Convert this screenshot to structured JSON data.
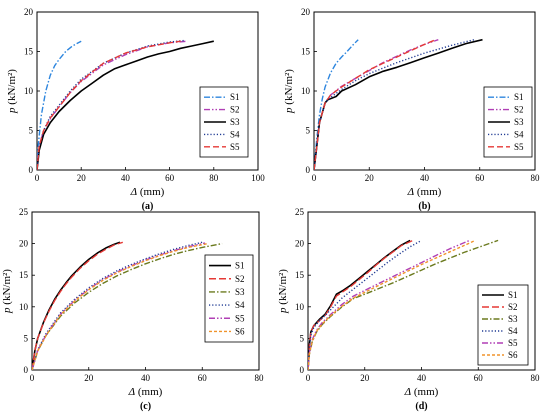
{
  "chart_data": [
    {
      "type": "line",
      "panel_label": "(a)",
      "xlabel_sym": "Δ",
      "xlabel_unit": " (mm)",
      "ylabel_sym": "p",
      "ylabel_unit": " (kN/m²)",
      "xlim": [
        0,
        100
      ],
      "ylim": [
        0,
        20
      ],
      "xticks": [
        0,
        20,
        40,
        60,
        80,
        100
      ],
      "yticks": [
        0,
        5,
        10,
        15,
        20
      ],
      "grid": false,
      "legend": "bottom-right",
      "series": [
        {
          "name": "S1",
          "color": "#2e86de",
          "dash": "6,2,1.5,2",
          "x": [
            0,
            0.5,
            2,
            4,
            6,
            8,
            10,
            13,
            16,
            20
          ],
          "y": [
            0,
            3,
            7,
            10,
            12,
            13.2,
            14,
            15,
            15.7,
            16.3
          ]
        },
        {
          "name": "S2",
          "color": "#b03fb5",
          "dash": "6,2,1.5,2,1.5,2",
          "x": [
            0,
            1,
            3,
            6,
            10,
            15,
            20,
            30,
            40,
            50,
            60,
            68
          ],
          "y": [
            0,
            3,
            5,
            6.5,
            8,
            9.8,
            11.2,
            13.3,
            14.6,
            15.6,
            16.1,
            16.3
          ]
        },
        {
          "name": "S3",
          "color": "#000000",
          "dash": "",
          "x": [
            0,
            1,
            3,
            6,
            10,
            15,
            20,
            25,
            30,
            35,
            40,
            45,
            50,
            55,
            60,
            65,
            70,
            75,
            80
          ],
          "y": [
            0,
            2.5,
            4.5,
            6,
            7.4,
            8.8,
            10,
            11,
            12,
            12.8,
            13.3,
            13.8,
            14.3,
            14.7,
            15,
            15.4,
            15.7,
            16,
            16.3
          ]
        },
        {
          "name": "S4",
          "color": "#1f3a93",
          "dash": "1.2,2",
          "x": [
            0,
            1,
            3,
            6,
            10,
            15,
            20,
            30,
            40,
            50,
            60,
            67
          ],
          "y": [
            0,
            3,
            5,
            6.8,
            8.2,
            10,
            11.5,
            13.5,
            14.8,
            15.7,
            16.2,
            16.4
          ]
        },
        {
          "name": "S5",
          "color": "#e53935",
          "dash": "6,3",
          "x": [
            0,
            1,
            3,
            6,
            10,
            15,
            20,
            30,
            40,
            50,
            60,
            65
          ],
          "y": [
            0,
            3,
            5,
            6.6,
            8,
            9.8,
            11.3,
            13.5,
            14.8,
            15.6,
            16.1,
            16.3
          ]
        }
      ]
    },
    {
      "type": "line",
      "panel_label": "(b)",
      "xlabel_sym": "Δ",
      "xlabel_unit": " (mm)",
      "ylabel_sym": "p",
      "ylabel_unit": " (kN/m²)",
      "xlim": [
        0,
        80
      ],
      "ylim": [
        0,
        20
      ],
      "xticks": [
        0,
        20,
        40,
        60,
        80
      ],
      "yticks": [
        0,
        5,
        10,
        15,
        20
      ],
      "grid": false,
      "legend": "bottom-right",
      "series": [
        {
          "name": "S1",
          "color": "#2e86de",
          "dash": "6,2,1.5,2",
          "x": [
            0,
            1,
            2,
            3,
            4,
            6,
            8,
            10,
            12,
            14,
            16
          ],
          "y": [
            0,
            4,
            7,
            9,
            10.5,
            12.3,
            13.5,
            14.3,
            15,
            15.8,
            16.5
          ]
        },
        {
          "name": "S2",
          "color": "#b03fb5",
          "dash": "6,2,1.5,2,1.5,2",
          "x": [
            0,
            1,
            2,
            4,
            6,
            10,
            15,
            20,
            25,
            30,
            35,
            40,
            45
          ],
          "y": [
            0,
            3,
            6,
            8.5,
            9.5,
            10.6,
            11.6,
            12.6,
            13.6,
            14.4,
            15.2,
            15.9,
            16.5
          ]
        },
        {
          "name": "S3",
          "color": "#000000",
          "dash": "",
          "x": [
            0,
            1,
            2,
            4,
            5,
            8,
            10,
            15,
            20,
            25,
            30,
            35,
            40,
            45,
            50,
            55,
            61
          ],
          "y": [
            0,
            3,
            6,
            8.5,
            8.9,
            9.3,
            10,
            10.8,
            11.8,
            12.5,
            13,
            13.6,
            14.2,
            14.8,
            15.4,
            16,
            16.5
          ]
        },
        {
          "name": "S4",
          "color": "#1f3a93",
          "dash": "1.2,2",
          "x": [
            0,
            1,
            2,
            4,
            6,
            10,
            15,
            20,
            30,
            40,
            50,
            58
          ],
          "y": [
            0,
            3,
            6,
            8.5,
            9.2,
            10.2,
            11.3,
            12.2,
            13.6,
            14.8,
            15.8,
            16.5
          ]
        },
        {
          "name": "S5",
          "color": "#e53935",
          "dash": "6,3",
          "x": [
            0,
            1,
            2,
            4,
            6,
            10,
            15,
            20,
            25,
            30,
            35,
            40,
            44
          ],
          "y": [
            0,
            3,
            6,
            8.5,
            9.5,
            10.5,
            11.6,
            12.7,
            13.5,
            14.3,
            15.1,
            15.9,
            16.5
          ]
        }
      ]
    },
    {
      "type": "line",
      "panel_label": "(c)",
      "xlabel_sym": "Δ",
      "xlabel_unit": " (mm)",
      "ylabel_sym": "p",
      "ylabel_unit": " (kN/m²)",
      "xlim": [
        0,
        80
      ],
      "ylim": [
        0,
        25
      ],
      "xticks": [
        0,
        20,
        40,
        60,
        80
      ],
      "yticks": [
        0,
        5,
        10,
        15,
        20,
        25
      ],
      "grid": false,
      "legend": "top-right",
      "series": [
        {
          "name": "S1",
          "color": "#000000",
          "dash": "",
          "x": [
            0,
            1,
            2,
            4,
            6,
            8,
            10,
            12,
            14,
            17,
            20,
            23,
            26,
            29,
            31
          ],
          "y": [
            0,
            3,
            5,
            7.5,
            9.5,
            11.2,
            12.6,
            13.8,
            14.9,
            16.3,
            17.5,
            18.5,
            19.3,
            19.9,
            20.2
          ]
        },
        {
          "name": "S2",
          "color": "#e53935",
          "dash": "7,3",
          "x": [
            0,
            1,
            2,
            4,
            6,
            8,
            10,
            12,
            14,
            17,
            20,
            23,
            26,
            29,
            32
          ],
          "y": [
            0,
            3,
            5,
            7.4,
            9.3,
            11,
            12.4,
            13.6,
            14.7,
            16.1,
            17.3,
            18.3,
            19.1,
            19.8,
            20.2
          ]
        },
        {
          "name": "S3",
          "color": "#6b7a1e",
          "dash": "6,2,1.5,2",
          "x": [
            0,
            2,
            5,
            10,
            15,
            20,
            25,
            30,
            35,
            40,
            45,
            50,
            55,
            60,
            67
          ],
          "y": [
            0,
            3,
            5.5,
            8.5,
            10.6,
            12.3,
            13.7,
            14.9,
            15.9,
            16.8,
            17.6,
            18.3,
            18.9,
            19.4,
            20
          ]
        },
        {
          "name": "S4",
          "color": "#1f3a93",
          "dash": "1.2,2",
          "x": [
            0,
            2,
            5,
            10,
            15,
            20,
            25,
            30,
            35,
            40,
            45,
            50,
            55,
            60
          ],
          "y": [
            0,
            3.2,
            5.8,
            9,
            11.2,
            13,
            14.5,
            15.7,
            16.7,
            17.6,
            18.4,
            19.1,
            19.7,
            20.2
          ]
        },
        {
          "name": "S5",
          "color": "#b03fb5",
          "dash": "6,2,1.5,2,1.5,2",
          "x": [
            0,
            2,
            5,
            10,
            15,
            20,
            25,
            30,
            35,
            40,
            45,
            50,
            55,
            61
          ],
          "y": [
            0,
            3.1,
            5.6,
            8.8,
            11,
            12.8,
            14.3,
            15.5,
            16.5,
            17.4,
            18.2,
            18.9,
            19.5,
            20.1
          ]
        },
        {
          "name": "S6",
          "color": "#f0932b",
          "dash": "3,2",
          "x": [
            0,
            2,
            5,
            10,
            15,
            20,
            25,
            30,
            35,
            40,
            45,
            50,
            55,
            62
          ],
          "y": [
            0,
            3,
            5.5,
            8.7,
            10.9,
            12.7,
            14.2,
            15.4,
            16.4,
            17.3,
            18.1,
            18.8,
            19.4,
            20
          ]
        }
      ]
    },
    {
      "type": "line",
      "panel_label": "(d)",
      "xlabel_sym": "Δ",
      "xlabel_unit": " (mm)",
      "ylabel_sym": "p",
      "ylabel_unit": " (kN/m²)",
      "xlim": [
        0,
        80
      ],
      "ylim": [
        0,
        25
      ],
      "xticks": [
        0,
        20,
        40,
        60,
        80
      ],
      "yticks": [
        0,
        5,
        10,
        15,
        20,
        25
      ],
      "grid": false,
      "legend": "bottom-right",
      "series": [
        {
          "name": "S1",
          "color": "#000000",
          "dash": "",
          "x": [
            0,
            0.5,
            1,
            2,
            4,
            6,
            8,
            10,
            12,
            15,
            18,
            21,
            24,
            27,
            30,
            33,
            36
          ],
          "y": [
            0,
            4,
            6,
            7,
            8,
            8.8,
            10.2,
            12,
            12.5,
            13.4,
            14.5,
            15.6,
            16.7,
            17.8,
            18.8,
            19.8,
            20.5
          ]
        },
        {
          "name": "S2",
          "color": "#e53935",
          "dash": "7,3",
          "x": [
            0,
            0.5,
            1,
            2,
            4,
            6,
            8,
            10,
            12,
            15,
            18,
            21,
            24,
            27,
            30,
            33,
            37
          ],
          "y": [
            0,
            4,
            6,
            7,
            7.8,
            8.6,
            10,
            11.7,
            12.3,
            13.2,
            14.3,
            15.4,
            16.6,
            17.7,
            18.7,
            19.7,
            20.5
          ]
        },
        {
          "name": "S3",
          "color": "#6b7a1e",
          "dash": "6,2,1.5,2",
          "x": [
            0,
            0.5,
            1.5,
            3,
            5,
            8,
            12,
            16,
            20,
            25,
            30,
            35,
            40,
            45,
            50,
            55,
            60,
            67
          ],
          "y": [
            0,
            2.5,
            4.5,
            6,
            7.2,
            8.5,
            10,
            11.3,
            12,
            12.9,
            13.8,
            14.8,
            15.8,
            16.8,
            17.7,
            18.6,
            19.4,
            20.5
          ]
        },
        {
          "name": "S4",
          "color": "#1f3a93",
          "dash": "1.2,2",
          "x": [
            0,
            0.5,
            1,
            2,
            4,
            6,
            9,
            12,
            16,
            20,
            24,
            28,
            32,
            36,
            40
          ],
          "y": [
            0,
            3.5,
            5.5,
            6.7,
            7.8,
            8.6,
            10,
            11.4,
            12.8,
            14.2,
            15.6,
            17,
            18.3,
            19.5,
            20.5
          ]
        },
        {
          "name": "S5",
          "color": "#b03fb5",
          "dash": "6,2,1.5,2,1.5,2",
          "x": [
            0,
            0.5,
            1.5,
            3,
            5,
            8,
            12,
            16,
            20,
            25,
            30,
            35,
            40,
            45,
            50,
            57
          ],
          "y": [
            0,
            2.8,
            4.8,
            6.3,
            7.5,
            8.8,
            10.4,
            11.7,
            12.6,
            13.7,
            14.8,
            15.9,
            17,
            18.1,
            19.2,
            20.5
          ]
        },
        {
          "name": "S6",
          "color": "#f0932b",
          "dash": "3,2",
          "x": [
            0,
            0.5,
            1.5,
            3,
            5,
            8,
            12,
            16,
            20,
            25,
            30,
            35,
            40,
            45,
            50,
            55,
            59
          ],
          "y": [
            0,
            2.6,
            4.6,
            6.1,
            7.3,
            8.6,
            10.1,
            11.4,
            12.3,
            13.4,
            14.5,
            15.6,
            16.7,
            17.7,
            18.7,
            19.7,
            20.5
          ]
        }
      ]
    }
  ]
}
